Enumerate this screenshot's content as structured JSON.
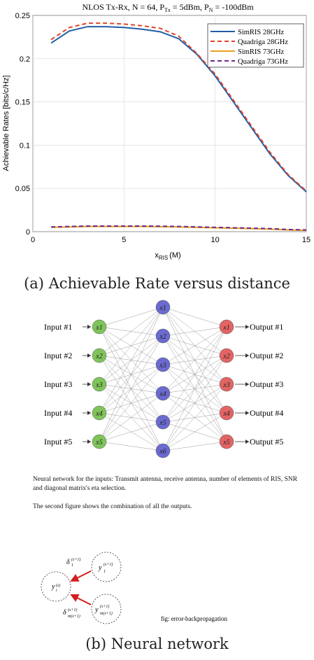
{
  "chart_data": {
    "type": "line",
    "title": "NLOS Tx-Rx, N = 64, P",
    "title_sub1": "Tx",
    "title_mid": " = 5dBm, P",
    "title_sub2": "N",
    "title_end": " = -100dBm",
    "xlabel_main": "x",
    "xlabel_sub": "RIS",
    "xlabel_unit": "(M)",
    "ylabel": "Achievable Rates [bits/c/Hz]",
    "xlim": [
      0,
      15
    ],
    "ylim": [
      0,
      0.25
    ],
    "xticks": [
      "0",
      "5",
      "10",
      "15"
    ],
    "yticks": [
      "0",
      "0.05",
      "0.1",
      "0.15",
      "0.2",
      "0.25"
    ],
    "grid": true,
    "legend_position": "top-right",
    "x": [
      1,
      2,
      3,
      4,
      5,
      6,
      7,
      8,
      9,
      10,
      11,
      12,
      13,
      14,
      15
    ],
    "series": [
      {
        "name": "SimRIS 28GHz",
        "color": "#1f5fa8",
        "dash": "solid",
        "values": [
          0.218,
          0.232,
          0.237,
          0.237,
          0.236,
          0.234,
          0.231,
          0.223,
          0.205,
          0.18,
          0.15,
          0.12,
          0.09,
          0.065,
          0.046
        ]
      },
      {
        "name": "Quadriga 28GHz",
        "color": "#e0442a",
        "dash": "dashed",
        "values": [
          0.222,
          0.236,
          0.241,
          0.241,
          0.24,
          0.238,
          0.235,
          0.226,
          0.206,
          0.182,
          0.152,
          0.122,
          0.092,
          0.066,
          0.047
        ]
      },
      {
        "name": "SimRIS 73GHz",
        "color": "#e8a020",
        "dash": "solid",
        "values": [
          0.005,
          0.0055,
          0.006,
          0.006,
          0.006,
          0.006,
          0.0058,
          0.0055,
          0.005,
          0.0045,
          0.004,
          0.0035,
          0.003,
          0.002,
          0.0015
        ]
      },
      {
        "name": "Quadriga 73GHz",
        "color": "#6a2c8e",
        "dash": "dashed",
        "values": [
          0.0055,
          0.006,
          0.0065,
          0.0065,
          0.0065,
          0.0065,
          0.0063,
          0.006,
          0.0055,
          0.005,
          0.0045,
          0.004,
          0.0035,
          0.0025,
          0.002
        ]
      }
    ]
  },
  "captions": {
    "a": "(a) Achievable Rate versus distance",
    "b": "(b) Neural network"
  },
  "neural_network": {
    "inputs": [
      "Input #1",
      "Input #2",
      "Input #3",
      "Input #4",
      "Input #5"
    ],
    "input_nodes": [
      "x1",
      "x2",
      "x3",
      "x4",
      "x5"
    ],
    "hidden_nodes": [
      "x1",
      "x2",
      "x3",
      "x4",
      "x5",
      "x6"
    ],
    "output_nodes": [
      "x1",
      "x2",
      "x3",
      "x4",
      "x5"
    ],
    "outputs": [
      "Output #1",
      "Output #2",
      "Output #3",
      "Output #4",
      "Output #5"
    ],
    "colors": {
      "input": "#7fc45a",
      "hidden": "#6a6ad0",
      "output": "#e36464"
    }
  },
  "notes": {
    "line1": "Neural network for the inputs: Transmit antenna, receive antenna, number of elements of RIS, SNR and diagonal matrix's eta selection.",
    "line2": "The second figure shows the combination of all the outputs."
  },
  "backprop": {
    "center_label": "y",
    "top_label": "y",
    "bottom_label": "y",
    "delta_label": "δ",
    "fig_label": "fig: error-backpropagation"
  }
}
